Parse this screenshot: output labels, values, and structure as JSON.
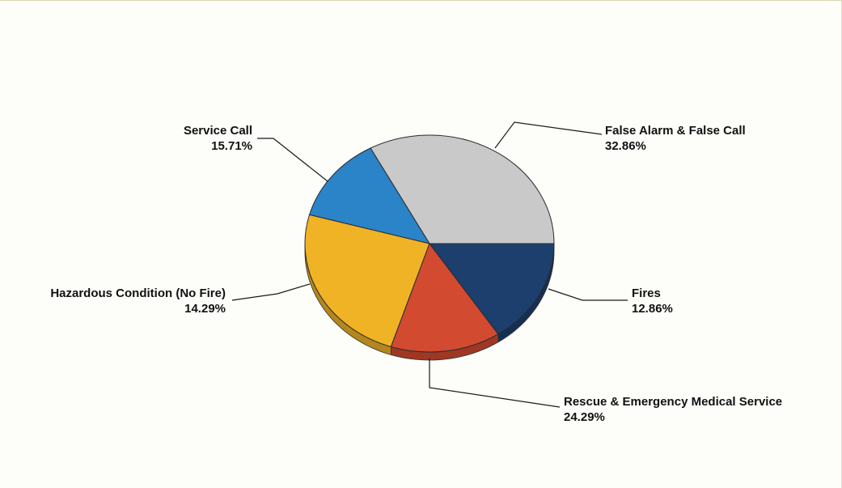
{
  "chart_data": {
    "type": "pie",
    "title": "",
    "legend": "none",
    "slices": [
      {
        "name": "False Alarm & False Call",
        "value": 32.86,
        "label": "32.86%",
        "color": "#c9c9c9"
      },
      {
        "name": "Fires",
        "value": 12.86,
        "label": "12.86%",
        "color": "#2b83c8"
      },
      {
        "name": "Rescue & Emergency Medical Service",
        "value": 24.29,
        "label": "24.29%",
        "color": "#f0b326"
      },
      {
        "name": "Hazardous Condition (No Fire)",
        "value": 14.29,
        "label": "14.29%",
        "color": "#d24a30"
      },
      {
        "name": "Service Call",
        "value": 15.71,
        "label": "15.71%",
        "color": "#1c3f6e"
      }
    ]
  }
}
